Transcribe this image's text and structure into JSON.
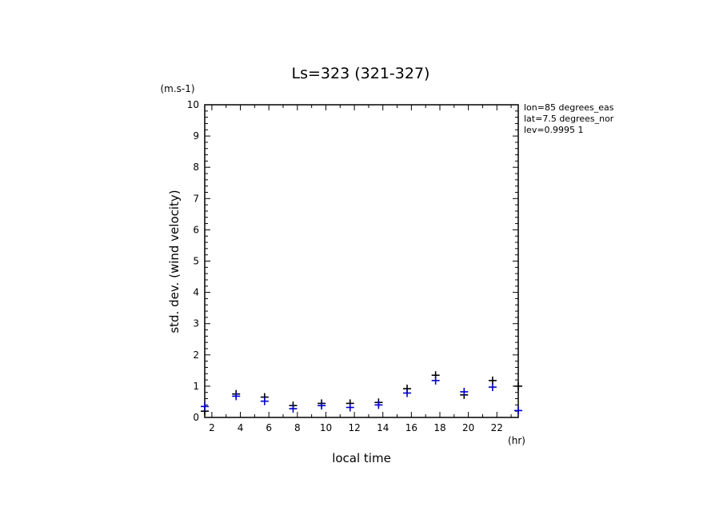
{
  "chart_data": {
    "type": "scatter",
    "title": "Ls=323 (321-327)",
    "ylabel": "std. dev. (wind velocity)",
    "yunit": "(m.s-1)",
    "xlabel": "local time",
    "xunit": "(hr)",
    "xlim": [
      1.5,
      23.5
    ],
    "ylim": [
      0,
      10
    ],
    "xticks": [
      2,
      4,
      6,
      8,
      10,
      12,
      14,
      16,
      18,
      20,
      22
    ],
    "yticks": [
      0,
      1,
      2,
      3,
      4,
      5,
      6,
      7,
      8,
      9,
      10
    ],
    "annotations": [
      "lon=85 degrees_eas",
      "lat=7.5 degrees_nor",
      "lev=0.9995 1"
    ],
    "series": [
      {
        "color": "#000000",
        "x": [
          1.5,
          3.7,
          5.7,
          7.7,
          9.7,
          11.7,
          13.7,
          15.7,
          17.7,
          19.7,
          21.7,
          23.5
        ],
        "y": [
          0.2,
          0.75,
          0.65,
          0.38,
          0.45,
          0.45,
          0.48,
          0.92,
          1.35,
          0.72,
          1.18,
          1.0
        ]
      },
      {
        "color": "#0000cc",
        "x": [
          1.5,
          3.7,
          5.7,
          7.7,
          9.7,
          11.7,
          13.7,
          15.7,
          17.7,
          19.7,
          21.7,
          23.5
        ],
        "y": [
          0.35,
          0.68,
          0.52,
          0.28,
          0.38,
          0.32,
          0.4,
          0.78,
          1.18,
          0.82,
          0.97,
          0.22
        ]
      }
    ]
  }
}
